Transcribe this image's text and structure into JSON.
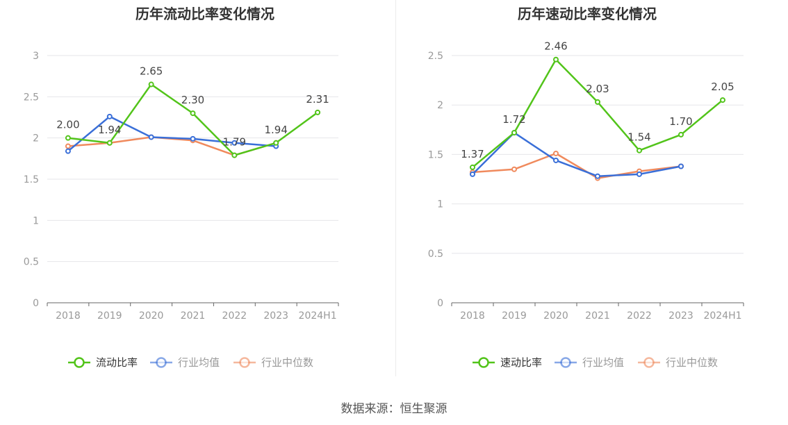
{
  "source_text": "数据来源：恒生聚源",
  "chart_data": [
    {
      "type": "line",
      "title": "历年流动比率变化情况",
      "categories": [
        "2018",
        "2019",
        "2020",
        "2021",
        "2022",
        "2023",
        "2024H1"
      ],
      "ylim": [
        0,
        3
      ],
      "yticks": [
        "0",
        "0.5",
        "1",
        "1.5",
        "2",
        "2.5",
        "3"
      ],
      "grid": true,
      "legend_position": "bottom",
      "series": [
        {
          "name": "流动比率",
          "color": "#52c41a",
          "values": [
            2.0,
            1.94,
            2.65,
            2.3,
            1.79,
            1.94,
            2.31
          ],
          "labels": [
            "2.00",
            "1.94",
            "2.65",
            "2.30",
            "1.79",
            "1.94",
            "2.31"
          ]
        },
        {
          "name": "行业均值",
          "color": "#3a6fd8",
          "values": [
            1.84,
            2.26,
            2.01,
            1.99,
            1.94,
            1.9,
            null
          ]
        },
        {
          "name": "行业中位数",
          "color": "#f08a5d",
          "values": [
            1.9,
            1.94,
            2.01,
            1.97,
            1.79,
            1.94,
            null
          ]
        }
      ]
    },
    {
      "type": "line",
      "title": "历年速动比率变化情况",
      "categories": [
        "2018",
        "2019",
        "2020",
        "2021",
        "2022",
        "2023",
        "2024H1"
      ],
      "ylim": [
        0,
        2.5
      ],
      "yticks": [
        "0",
        "0.5",
        "1",
        "1.5",
        "2",
        "2.5"
      ],
      "grid": true,
      "legend_position": "bottom",
      "series": [
        {
          "name": "速动比率",
          "color": "#52c41a",
          "values": [
            1.37,
            1.72,
            2.46,
            2.03,
            1.54,
            1.7,
            2.05
          ],
          "labels": [
            "1.37",
            "1.72",
            "2.46",
            "2.03",
            "1.54",
            "1.70",
            "2.05"
          ]
        },
        {
          "name": "行业均值",
          "color": "#3a6fd8",
          "values": [
            1.3,
            1.72,
            1.44,
            1.28,
            1.3,
            1.38,
            null
          ]
        },
        {
          "name": "行业中位数",
          "color": "#f08a5d",
          "values": [
            1.32,
            1.35,
            1.51,
            1.26,
            1.33,
            1.38,
            null
          ]
        }
      ]
    }
  ]
}
